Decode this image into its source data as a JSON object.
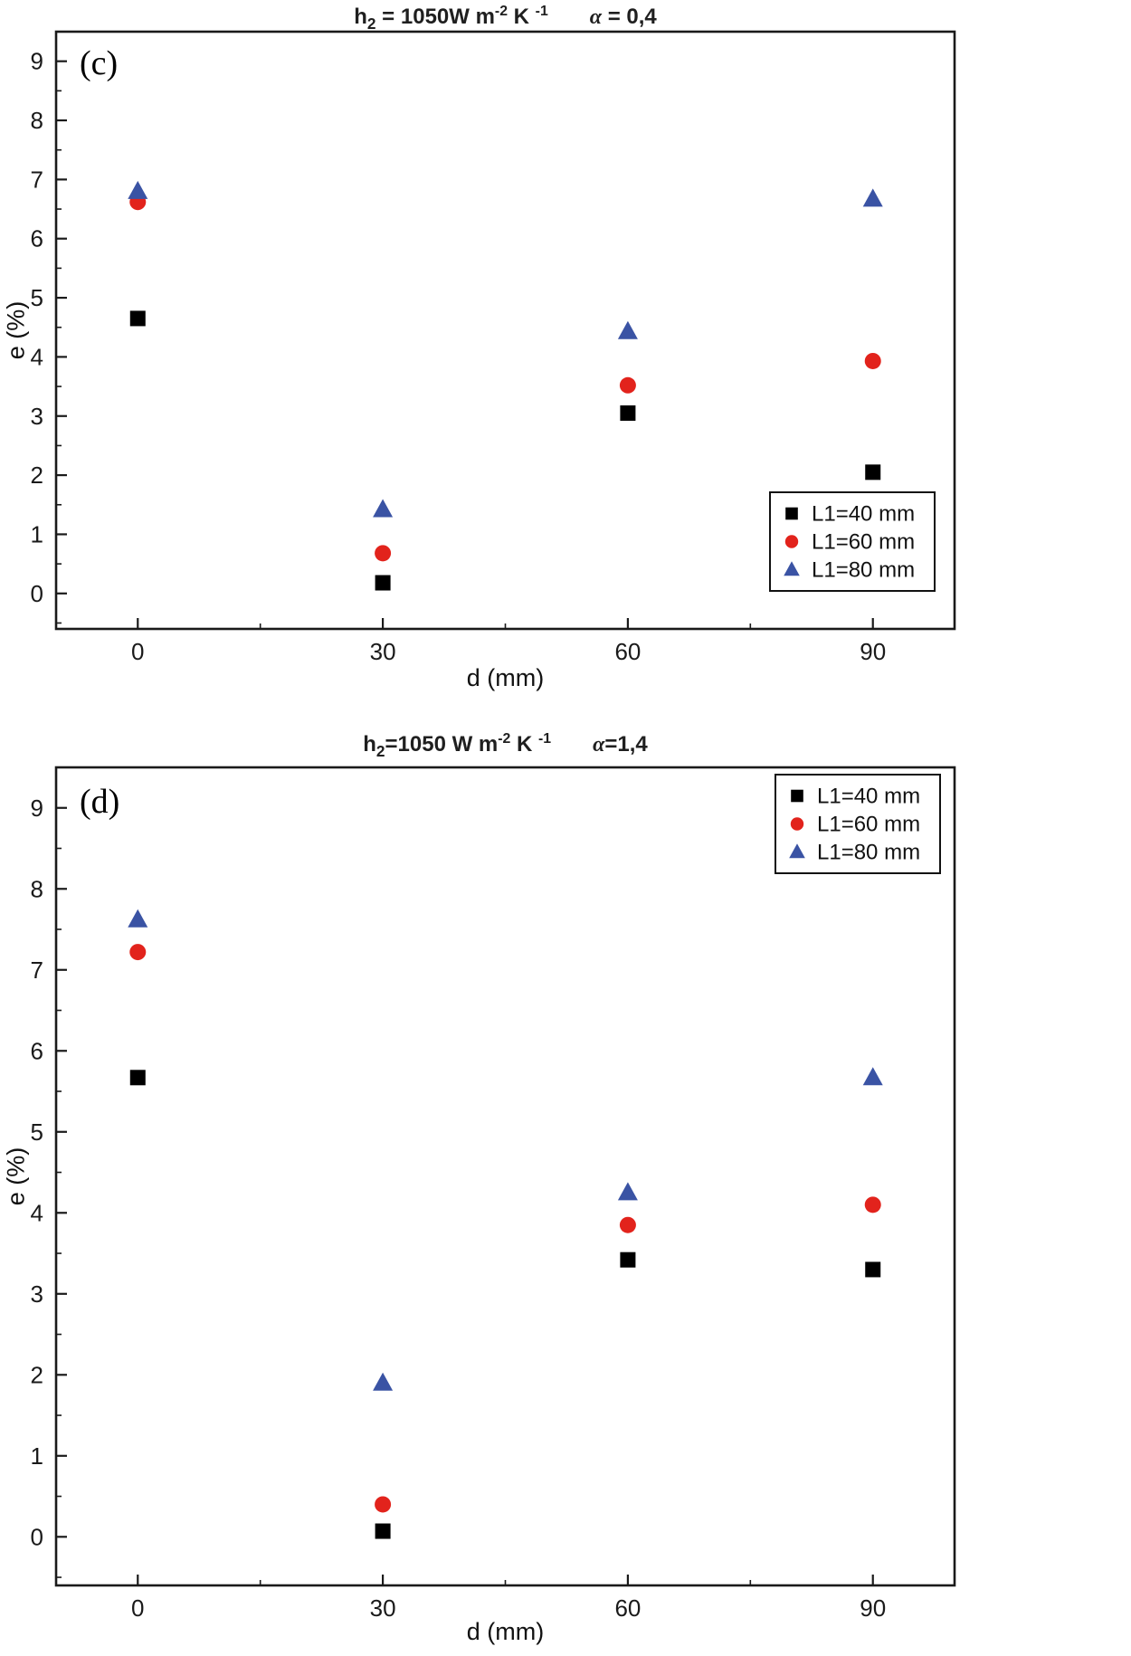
{
  "page": {
    "background": "#ffffff"
  },
  "chart_data": [
    {
      "type": "scatter",
      "panel_label": "(c)",
      "title_text": "h₂ = 1050W m⁻² K⁻¹      α = 0,4",
      "title_parts": [
        {
          "t": "h"
        },
        {
          "sub": "2"
        },
        {
          "t": " = 1050W m"
        },
        {
          "sup": "-2"
        },
        {
          "t": " K "
        },
        {
          "sup": "-1"
        },
        {
          "gap": true
        },
        {
          "it": "α"
        },
        {
          "t": " = 0,4"
        }
      ],
      "xlabel": "d (mm)",
      "ylabel": "e (%)",
      "x": [
        0,
        30,
        60,
        90
      ],
      "x_ticks": [
        0,
        30,
        60,
        90
      ],
      "y_ticks": [
        0,
        1,
        2,
        3,
        4,
        5,
        6,
        7,
        8,
        9
      ],
      "xlim": [
        -10,
        100
      ],
      "ylim": [
        -0.6,
        9.5
      ],
      "grid": false,
      "legend_position": "bottom-right",
      "series": [
        {
          "name": "L1=40 mm",
          "marker": "square",
          "color": "#000000",
          "values": [
            4.65,
            0.18,
            3.05,
            2.05
          ]
        },
        {
          "name": "L1=60 mm",
          "marker": "circle",
          "color": "#e2231c",
          "values": [
            6.62,
            0.68,
            3.52,
            3.93
          ]
        },
        {
          "name": "L1=80 mm",
          "marker": "triangle",
          "color": "#3a53a4",
          "values": [
            6.8,
            1.42,
            4.43,
            6.67
          ]
        }
      ]
    },
    {
      "type": "scatter",
      "panel_label": "(d)",
      "title_text": "h₂=1050 W m⁻² K⁻¹      α=1,4",
      "title_parts": [
        {
          "t": "h"
        },
        {
          "sub": "2"
        },
        {
          "t": "=1050 W m"
        },
        {
          "sup": "-2"
        },
        {
          "t": " K "
        },
        {
          "sup": "-1"
        },
        {
          "gap": true
        },
        {
          "it": "α"
        },
        {
          "t": "=1,4"
        }
      ],
      "xlabel": "d (mm)",
      "ylabel": "e (%)",
      "x": [
        0,
        30,
        60,
        90
      ],
      "x_ticks": [
        0,
        30,
        60,
        90
      ],
      "y_ticks": [
        0,
        1,
        2,
        3,
        4,
        5,
        6,
        7,
        8,
        9
      ],
      "xlim": [
        -10,
        100
      ],
      "ylim": [
        -0.6,
        9.5
      ],
      "grid": false,
      "legend_position": "top-right",
      "series": [
        {
          "name": "L1=40 mm",
          "marker": "square",
          "color": "#000000",
          "values": [
            5.67,
            0.07,
            3.42,
            3.3
          ]
        },
        {
          "name": "L1=60 mm",
          "marker": "circle",
          "color": "#e2231c",
          "values": [
            7.22,
            0.4,
            3.85,
            4.1
          ]
        },
        {
          "name": "L1=80 mm",
          "marker": "triangle",
          "color": "#3a53a4",
          "values": [
            7.62,
            1.9,
            4.25,
            5.67
          ]
        }
      ]
    }
  ]
}
